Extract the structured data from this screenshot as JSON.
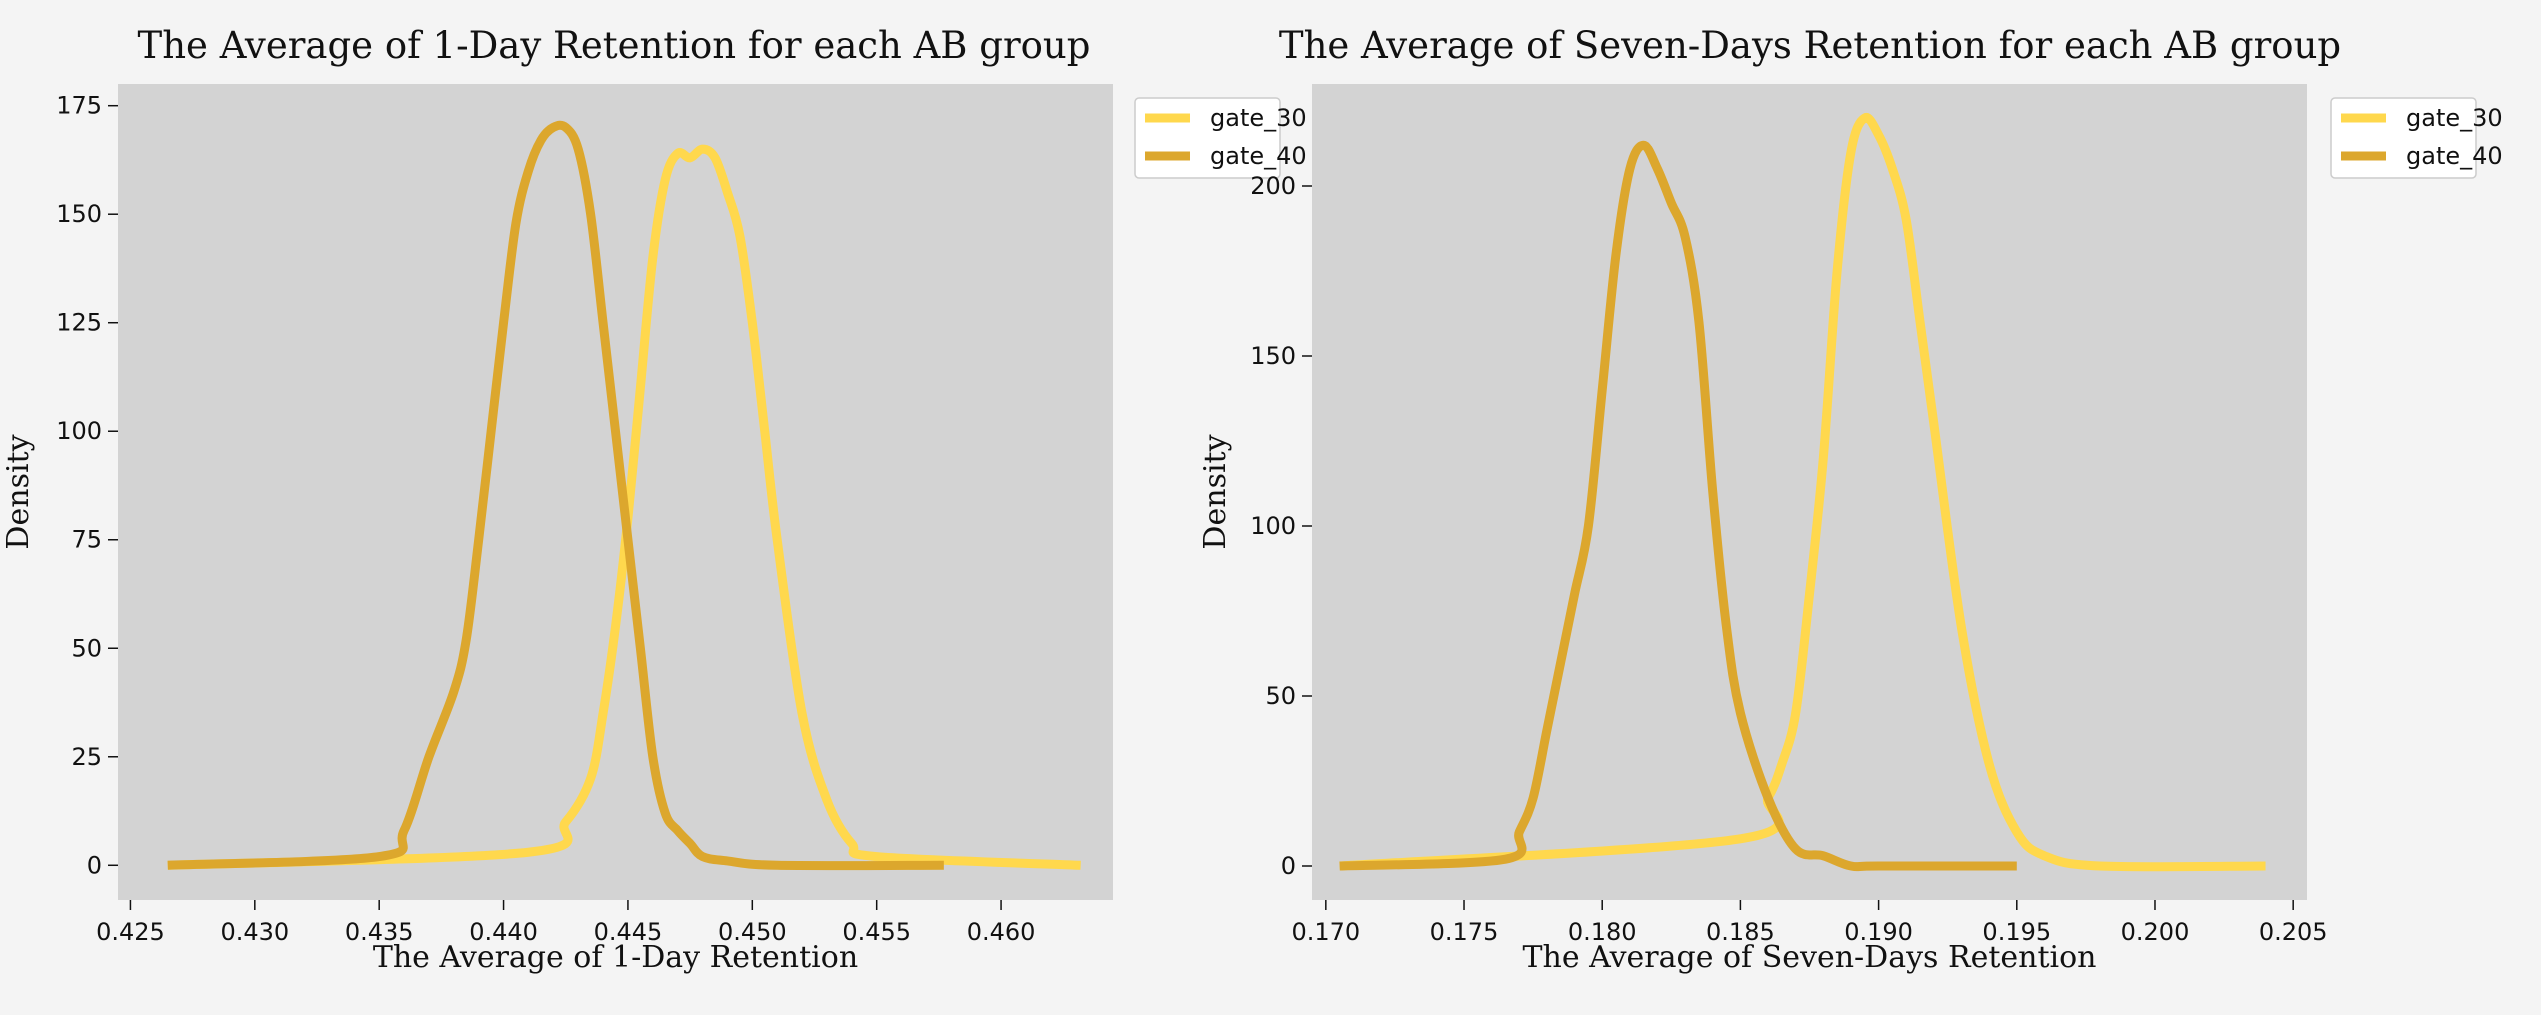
{
  "colors": {
    "page_background": "#f4f4f4",
    "plot_background": "#d3d3d3",
    "gate_30": "#ffd84d",
    "gate_40": "#dca72d"
  },
  "chart_data": [
    {
      "type": "line",
      "title": "The Average of 1-Day Retention for each AB group",
      "xlabel": "The Average of 1-Day Retention",
      "ylabel": "Density",
      "xlim": [
        0.4245,
        0.4645
      ],
      "ylim": [
        -8,
        180
      ],
      "x_ticks": [
        "0.425",
        "0.430",
        "0.435",
        "0.440",
        "0.445",
        "0.450",
        "0.455",
        "0.460"
      ],
      "y_ticks": [
        "0",
        "25",
        "50",
        "75",
        "100",
        "125",
        "150",
        "175"
      ],
      "grid": false,
      "legend": "outside top-right",
      "series": [
        {
          "name": "gate_30",
          "color": "#ffd84d",
          "x": [
            0.441,
            0.4425,
            0.4435,
            0.444,
            0.4445,
            0.445,
            0.4455,
            0.446,
            0.4465,
            0.447,
            0.4475,
            0.448,
            0.4485,
            0.449,
            0.4495,
            0.45,
            0.4505,
            0.451,
            0.452,
            0.453,
            0.454,
            0.455
          ],
          "y": [
            3,
            10,
            20,
            35,
            55,
            80,
            110,
            140,
            158,
            164,
            163,
            165,
            163,
            155,
            145,
            125,
            100,
            75,
            35,
            15,
            5,
            2
          ]
        },
        {
          "name": "gate_40",
          "color": "#dca72d",
          "x": [
            0.435,
            0.436,
            0.437,
            0.438,
            0.4385,
            0.439,
            0.4395,
            0.44,
            0.4405,
            0.441,
            0.4415,
            0.442,
            0.4425,
            0.443,
            0.4435,
            0.444,
            0.4445,
            0.445,
            0.4455,
            0.446,
            0.4465,
            0.447,
            0.4475,
            0.448,
            0.449,
            0.451
          ],
          "y": [
            2,
            8,
            25,
            40,
            52,
            75,
            100,
            125,
            148,
            160,
            167,
            170,
            170,
            165,
            150,
            125,
            100,
            75,
            50,
            25,
            12,
            8,
            5,
            2,
            1,
            0
          ]
        }
      ]
    },
    {
      "type": "line",
      "title": "The Average of Seven-Days Retention for each AB group",
      "xlabel": "The Average of Seven-Days Retention",
      "ylabel": "Density",
      "xlim": [
        0.1695,
        0.2055
      ],
      "ylim": [
        -10,
        230
      ],
      "x_ticks": [
        "0.170",
        "0.175",
        "0.180",
        "0.185",
        "0.190",
        "0.195",
        "0.200",
        "0.205"
      ],
      "y_ticks": [
        "0",
        "50",
        "100",
        "150",
        "200"
      ],
      "grid": false,
      "legend": "outside top-right",
      "series": [
        {
          "name": "gate_30",
          "color": "#ffd84d",
          "x": [
            0.185,
            0.186,
            0.1865,
            0.187,
            0.1875,
            0.188,
            0.1885,
            0.189,
            0.1895,
            0.19,
            0.1905,
            0.191,
            0.1915,
            0.192,
            0.193,
            0.194,
            0.195,
            0.196,
            0.198
          ],
          "y": [
            8,
            20,
            30,
            45,
            80,
            120,
            175,
            210,
            220,
            215,
            205,
            190,
            160,
            130,
            70,
            30,
            10,
            3,
            0
          ]
        },
        {
          "name": "gate_40",
          "color": "#dca72d",
          "x": [
            0.1765,
            0.177,
            0.1775,
            0.178,
            0.1785,
            0.179,
            0.1795,
            0.18,
            0.1805,
            0.181,
            0.1815,
            0.182,
            0.1825,
            0.183,
            0.1835,
            0.184,
            0.1845,
            0.185,
            0.186,
            0.187,
            0.188,
            0.189,
            0.19
          ],
          "y": [
            2,
            10,
            20,
            40,
            60,
            80,
            100,
            140,
            180,
            205,
            212,
            205,
            195,
            185,
            160,
            110,
            70,
            45,
            20,
            5,
            3,
            0,
            0
          ]
        }
      ]
    }
  ]
}
